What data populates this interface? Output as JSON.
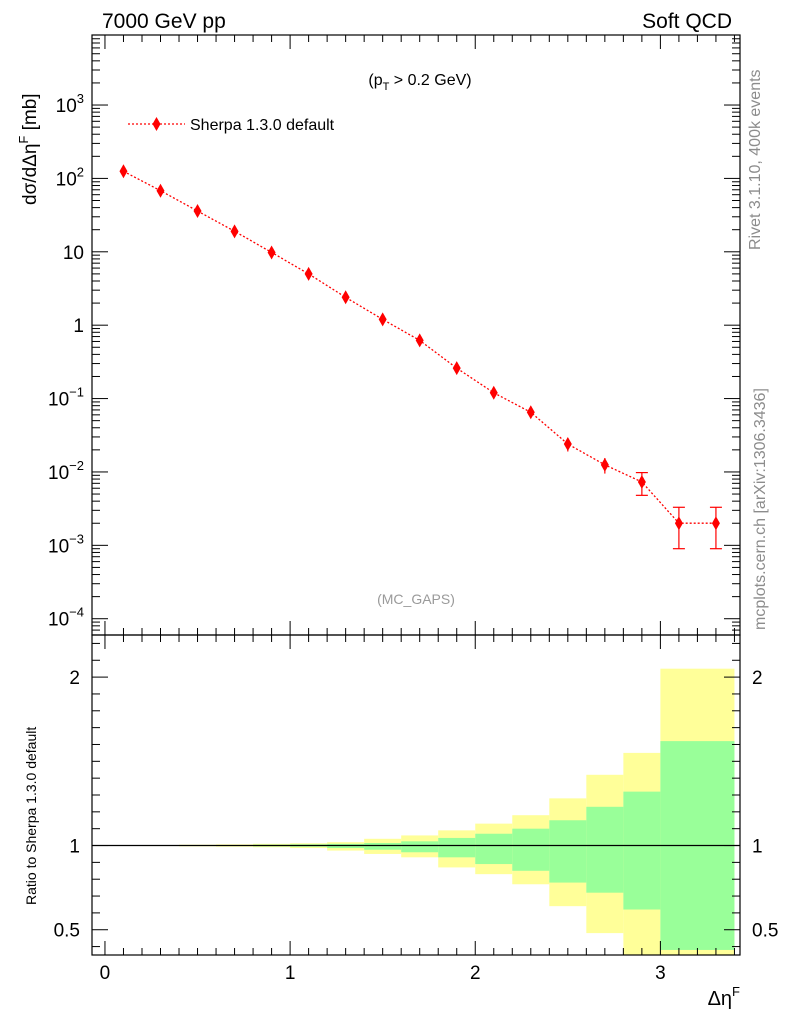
{
  "header": {
    "left": "7000 GeV pp",
    "right": "Soft QCD"
  },
  "side_text": {
    "rivet": "Rivet 3.1.10,  400k events",
    "source": "mcplots.cern.ch [arXiv:1306.3436]"
  },
  "chart_data": [
    {
      "type": "line",
      "annotation": "(p_T > 0.2 GeV)",
      "watermark": "(MC_GAPS)",
      "ylabel": "dσ/dΔη^F [mb]",
      "yscale": "log",
      "xlim": [
        -0.07,
        3.43
      ],
      "ylim": [
        6e-05,
        9000
      ],
      "y_ticks": [
        {
          "value": 0.0001,
          "label": "10^-4"
        },
        {
          "value": 0.001,
          "label": "10^-3"
        },
        {
          "value": 0.01,
          "label": "10^-2"
        },
        {
          "value": 0.1,
          "label": "10^-1"
        },
        {
          "value": 1,
          "label": "1"
        },
        {
          "value": 10,
          "label": "10"
        },
        {
          "value": 100,
          "label": "10^2"
        },
        {
          "value": 1000,
          "label": "10^3"
        }
      ],
      "legend_position": "top-left",
      "series": [
        {
          "name": "Sherpa 1.3.0 default",
          "color": "#ff0000",
          "x": [
            0.1,
            0.3,
            0.5,
            0.7,
            0.9,
            1.1,
            1.3,
            1.5,
            1.7,
            1.9,
            2.1,
            2.3,
            2.5,
            2.7,
            2.9,
            3.1,
            3.3
          ],
          "y": [
            125,
            68,
            36,
            19,
            9.8,
            5.0,
            2.4,
            1.2,
            0.62,
            0.26,
            0.12,
            0.065,
            0.024,
            0.0125,
            0.0073,
            0.002,
            0.002
          ],
          "yerr_up": [
            3,
            2,
            1.5,
            0.9,
            0.5,
            0.3,
            0.15,
            0.08,
            0.05,
            0.03,
            0.015,
            0.009,
            0.005,
            0.003,
            0.0025,
            0.0013,
            0.0013
          ],
          "yerr_down": [
            3,
            2,
            1.5,
            0.9,
            0.5,
            0.3,
            0.15,
            0.08,
            0.05,
            0.03,
            0.015,
            0.009,
            0.005,
            0.003,
            0.0025,
            0.0011,
            0.0011
          ]
        }
      ]
    },
    {
      "type": "area",
      "ylabel": "Ratio to Sherpa 1.3.0 default",
      "xlabel": "Δη^F",
      "xlim": [
        -0.07,
        3.43
      ],
      "ylim": [
        0.35,
        2.25
      ],
      "x_ticks": [
        0,
        1,
        2,
        3
      ],
      "y_ticks": [
        0.5,
        1,
        2
      ],
      "reference_line": 1,
      "bin_edges": [
        0.0,
        0.2,
        0.4,
        0.6,
        0.8,
        1.0,
        1.2,
        1.4,
        1.6,
        1.8,
        2.0,
        2.2,
        2.4,
        2.6,
        2.8,
        3.0,
        3.4
      ],
      "bands": [
        {
          "color": "#ffff99",
          "upper": [
            1.002,
            1.003,
            1.005,
            1.007,
            1.01,
            1.013,
            1.02,
            1.04,
            1.06,
            1.09,
            1.13,
            1.18,
            1.28,
            1.42,
            1.55,
            2.05
          ],
          "lower": [
            0.998,
            0.997,
            0.995,
            0.993,
            0.99,
            0.985,
            0.97,
            0.95,
            0.93,
            0.87,
            0.83,
            0.77,
            0.64,
            0.48,
            0.33,
            0.33
          ]
        },
        {
          "color": "#99ff99",
          "upper": [
            1.001,
            1.001,
            1.002,
            1.003,
            1.005,
            1.007,
            1.01,
            1.015,
            1.025,
            1.045,
            1.07,
            1.1,
            1.15,
            1.23,
            1.32,
            1.62
          ],
          "lower": [
            0.999,
            0.999,
            0.998,
            0.997,
            0.995,
            0.993,
            0.985,
            0.975,
            0.96,
            0.93,
            0.89,
            0.85,
            0.78,
            0.72,
            0.62,
            0.38
          ]
        }
      ]
    }
  ]
}
